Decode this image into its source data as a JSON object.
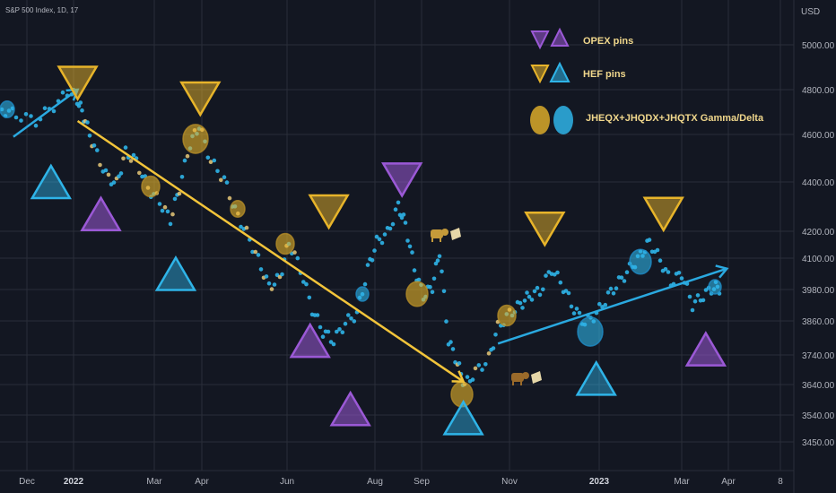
{
  "header": {
    "symbol_label": "S&P 500 Index, 1D, 17"
  },
  "price_axis": {
    "unit": "USD",
    "ticks": [
      5000,
      4800,
      4600,
      4400,
      4200,
      4100,
      3980,
      3860,
      3740,
      3640,
      3540,
      3450
    ]
  },
  "time_axis": {
    "ticks": [
      {
        "label": "Dec",
        "bold": false
      },
      {
        "label": "2022",
        "bold": true
      },
      {
        "label": "Mar",
        "bold": false
      },
      {
        "label": "Apr",
        "bold": false
      },
      {
        "label": "Jun",
        "bold": false
      },
      {
        "label": "Aug",
        "bold": false
      },
      {
        "label": "Sep",
        "bold": false
      },
      {
        "label": "Nov",
        "bold": false
      },
      {
        "label": "2023",
        "bold": true
      },
      {
        "label": "Mar",
        "bold": false
      },
      {
        "label": "Apr",
        "bold": false
      },
      {
        "label": "8",
        "bold": false
      }
    ]
  },
  "legend": {
    "opex": "OPEX pins",
    "hef": "HEF pins",
    "gamma": "JHEQX+JHQDX+JHQTX Gamma/Delta"
  },
  "colors": {
    "background": "#131722",
    "grid": "#2a2e39",
    "purple": "#9b59d6",
    "gold": "#e7b42a",
    "blue": "#2fb4e8",
    "arrow_gold": "#f2c43a",
    "arrow_blue": "#2aa9e0",
    "legend_text": "#f0d78c"
  },
  "chart_data": {
    "type": "scatter",
    "title": "",
    "y_unit": "USD",
    "series": [
      {
        "name": "OPEX pins",
        "marker": "purple triangle",
        "points": [
          {
            "date": "2022-01-21",
            "y": 4270,
            "dir": "up"
          },
          {
            "date": "2022-06-17",
            "y": 3790,
            "dir": "up"
          },
          {
            "date": "2022-07-15",
            "y": 3560,
            "dir": "up"
          },
          {
            "date": "2022-08-19",
            "y": 4410,
            "dir": "down"
          },
          {
            "date": "2023-03-17",
            "y": 3760,
            "dir": "up"
          }
        ]
      },
      {
        "name": "HEF pins",
        "marker": "gold / blue triangle",
        "points": [
          {
            "date": "2021-12-17",
            "y": 4400,
            "dir": "up",
            "color": "blue"
          },
          {
            "date": "2022-01-04",
            "y": 4830,
            "dir": "down",
            "color": "gold"
          },
          {
            "date": "2022-03-31",
            "y": 4760,
            "dir": "down",
            "color": "gold"
          },
          {
            "date": "2022-03-15",
            "y": 4040,
            "dir": "up",
            "color": "blue"
          },
          {
            "date": "2022-06-30",
            "y": 4280,
            "dir": "down",
            "color": "gold"
          },
          {
            "date": "2022-09-30",
            "y": 3530,
            "dir": "up",
            "color": "blue"
          },
          {
            "date": "2022-11-25",
            "y": 4210,
            "dir": "down",
            "color": "gold"
          },
          {
            "date": "2022-12-30",
            "y": 3660,
            "dir": "up",
            "color": "blue"
          },
          {
            "date": "2023-02-16",
            "y": 4270,
            "dir": "down",
            "color": "gold"
          }
        ]
      },
      {
        "name": "Trend arrows",
        "lines": [
          {
            "color": "blue",
            "from": {
              "date": "2021-11-22",
              "y": 4590
            },
            "to": {
              "date": "2022-01-04",
              "y": 4800
            }
          },
          {
            "color": "gold",
            "from": {
              "date": "2022-01-04",
              "y": 4660
            },
            "to": {
              "date": "2022-09-30",
              "y": 3650
            }
          },
          {
            "color": "blue",
            "from": {
              "date": "2022-10-24",
              "y": 3780
            },
            "to": {
              "date": "2023-03-31",
              "y": 4060
            }
          }
        ]
      }
    ]
  }
}
